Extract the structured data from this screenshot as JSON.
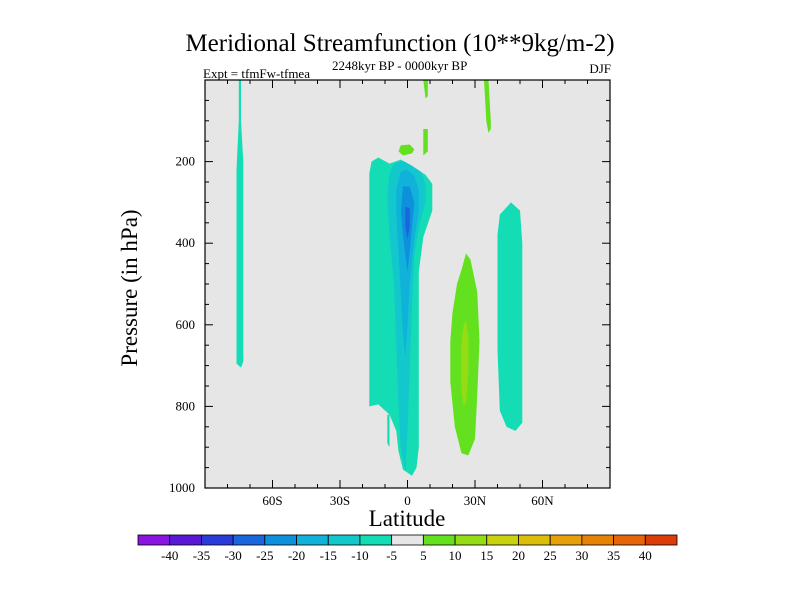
{
  "chart_data": {
    "type": "filled-contour",
    "title": "Meridional Streamfunction (10**9kg/m-2)",
    "experiment": "Expt = tfmFw-tfmea",
    "subtitle": "2248kyr BP - 0000kyr BP",
    "season": "DJF",
    "xlabel": "Latitude",
    "ylabel": "Pressure (in hPa)",
    "xlim": [
      -90,
      90
    ],
    "ylim": [
      1000,
      0
    ],
    "xticks": [
      -60,
      -30,
      0,
      30,
      60
    ],
    "xtick_labels": [
      "60S",
      "30S",
      "0",
      "30N",
      "60N"
    ],
    "yticks": [
      200,
      400,
      600,
      800,
      1000
    ],
    "ytick_labels": [
      "200",
      "400",
      "600",
      "800",
      "1000"
    ],
    "background_color": "#e6e6e6",
    "colorbar": {
      "levels": [
        "-40",
        "-35",
        "-30",
        "-25",
        "-20",
        "-15",
        "-10",
        "-5",
        "5",
        "10",
        "15",
        "20",
        "25",
        "30",
        "35",
        "40"
      ],
      "colors": [
        "#8a14e0",
        "#5a18d6",
        "#2a3cd8",
        "#1a66dc",
        "#0f90dc",
        "#10b2da",
        "#12c8cc",
        "#14dcb4",
        "#e6e6e6",
        "#64e11e",
        "#96dc14",
        "#c8d20f",
        "#dcbe0a",
        "#e6a00a",
        "#e68205",
        "#e6640a",
        "#dc3c0a"
      ]
    },
    "regions": [
      {
        "name": "minus-5-lobe-70S",
        "value": -5,
        "color": "#14dcb4",
        "points": [
          [
            -75,
            0
          ],
          [
            -74,
            0
          ],
          [
            -74,
            100
          ],
          [
            -73,
            200
          ],
          [
            -73,
            330
          ],
          [
            -73,
            560
          ],
          [
            -73,
            690
          ],
          [
            -74,
            705
          ],
          [
            -76,
            695
          ],
          [
            -76,
            620
          ],
          [
            -76,
            420
          ],
          [
            -76,
            220
          ],
          [
            -75,
            100
          ]
        ]
      },
      {
        "name": "minus-5-equator-cell",
        "value": -5,
        "color": "#14dcb4",
        "points": [
          [
            -16,
            200
          ],
          [
            -13,
            190
          ],
          [
            -8,
            205
          ],
          [
            -3,
            195
          ],
          [
            3,
            215
          ],
          [
            8,
            232
          ],
          [
            11,
            255
          ],
          [
            11,
            320
          ],
          [
            7,
            385
          ],
          [
            5,
            470
          ],
          [
            5,
            600
          ],
          [
            5,
            750
          ],
          [
            5,
            900
          ],
          [
            4,
            950
          ],
          [
            2,
            970
          ],
          [
            -2,
            955
          ],
          [
            -4,
            910
          ],
          [
            -5,
            860
          ],
          [
            -8,
            820
          ],
          [
            -13,
            795
          ],
          [
            -17,
            800
          ],
          [
            -17,
            700
          ],
          [
            -17,
            600
          ],
          [
            -17,
            450
          ],
          [
            -17,
            300
          ],
          [
            -17,
            230
          ]
        ]
      },
      {
        "name": "minus-10-equator",
        "value": -10,
        "color": "#12c8cc",
        "points": [
          [
            -6,
            205
          ],
          [
            -2,
            198
          ],
          [
            2,
            210
          ],
          [
            6,
            225
          ],
          [
            8,
            255
          ],
          [
            8,
            300
          ],
          [
            5,
            360
          ],
          [
            3,
            430
          ],
          [
            2,
            560
          ],
          [
            1,
            700
          ],
          [
            0,
            860
          ],
          [
            -1,
            960
          ],
          [
            -3,
            900
          ],
          [
            -4,
            800
          ],
          [
            -5,
            650
          ],
          [
            -6,
            500
          ],
          [
            -8,
            380
          ],
          [
            -9,
            290
          ],
          [
            -8,
            230
          ]
        ]
      },
      {
        "name": "minus-15-equator",
        "value": -15,
        "color": "#10b2da",
        "points": [
          [
            -3,
            225
          ],
          [
            0,
            220
          ],
          [
            3,
            235
          ],
          [
            5,
            270
          ],
          [
            5,
            320
          ],
          [
            3,
            390
          ],
          [
            1,
            500
          ],
          [
            0,
            600
          ],
          [
            -1,
            680
          ],
          [
            -2,
            620
          ],
          [
            -3,
            520
          ],
          [
            -4,
            420
          ],
          [
            -5,
            330
          ],
          [
            -5,
            270
          ]
        ]
      },
      {
        "name": "minus-20-core",
        "value": -20,
        "color": "#0f90dc",
        "points": [
          [
            -2,
            260
          ],
          [
            1,
            262
          ],
          [
            3,
            300
          ],
          [
            2,
            360
          ],
          [
            1,
            420
          ],
          [
            0,
            470
          ],
          [
            -1,
            430
          ],
          [
            -2,
            380
          ],
          [
            -3,
            320
          ]
        ]
      },
      {
        "name": "minus-25-core",
        "value": -25,
        "color": "#1a66dc",
        "points": [
          [
            -1,
            310
          ],
          [
            1,
            315
          ],
          [
            1,
            360
          ],
          [
            0,
            390
          ],
          [
            -1,
            360
          ]
        ]
      },
      {
        "name": "minus-5-speck-low",
        "value": -5,
        "color": "#14dcb4",
        "points": [
          [
            -9,
            820
          ],
          [
            -8,
            820
          ],
          [
            -8,
            860
          ],
          [
            -8,
            900
          ],
          [
            -9,
            890
          ],
          [
            -9,
            850
          ]
        ]
      },
      {
        "name": "minus-5-cell-45N",
        "value": -5,
        "color": "#14dcb4",
        "points": [
          [
            41,
            330
          ],
          [
            46,
            300
          ],
          [
            50,
            320
          ],
          [
            51,
            400
          ],
          [
            51,
            540
          ],
          [
            51,
            700
          ],
          [
            51,
            840
          ],
          [
            48,
            860
          ],
          [
            44,
            850
          ],
          [
            41,
            810
          ],
          [
            40,
            660
          ],
          [
            40,
            480
          ],
          [
            40,
            380
          ]
        ]
      },
      {
        "name": "plus-5-cell-25N",
        "value": 5,
        "color": "#64e11e",
        "points": [
          [
            24,
            465
          ],
          [
            26,
            425
          ],
          [
            28,
            440
          ],
          [
            31,
            520
          ],
          [
            32,
            640
          ],
          [
            31,
            770
          ],
          [
            30,
            880
          ],
          [
            27,
            920
          ],
          [
            24,
            915
          ],
          [
            21,
            850
          ],
          [
            19,
            740
          ],
          [
            19,
            640
          ],
          [
            20,
            570
          ],
          [
            22,
            500
          ]
        ]
      },
      {
        "name": "plus-10-core-25N",
        "value": 10,
        "color": "#96dc14",
        "points": [
          [
            25,
            600
          ],
          [
            26,
            590
          ],
          [
            27,
            630
          ],
          [
            27,
            720
          ],
          [
            26,
            790
          ],
          [
            25,
            800
          ],
          [
            24,
            760
          ],
          [
            24,
            680
          ],
          [
            24,
            640
          ]
        ]
      },
      {
        "name": "plus-5-sliver-top-8N",
        "value": 5,
        "color": "#64e11e",
        "points": [
          [
            7,
            0
          ],
          [
            9,
            0
          ],
          [
            9,
            40
          ],
          [
            8,
            45
          ]
        ]
      },
      {
        "name": "plus-5-strip-upper",
        "value": 5,
        "color": "#64e11e",
        "points": [
          [
            7,
            120
          ],
          [
            9,
            120
          ],
          [
            9,
            175
          ],
          [
            7,
            185
          ]
        ]
      },
      {
        "name": "plus-5-blob-upper",
        "value": 5,
        "color": "#64e11e",
        "points": [
          [
            -3,
            160
          ],
          [
            1,
            158
          ],
          [
            3,
            170
          ],
          [
            2,
            180
          ],
          [
            -2,
            185
          ],
          [
            -4,
            175
          ]
        ]
      },
      {
        "name": "plus-5-strip-35N",
        "value": 5,
        "color": "#64e11e",
        "points": [
          [
            34,
            0
          ],
          [
            36,
            0
          ],
          [
            37,
            100
          ],
          [
            37,
            120
          ],
          [
            36,
            130
          ],
          [
            35,
            100
          ]
        ]
      }
    ]
  }
}
